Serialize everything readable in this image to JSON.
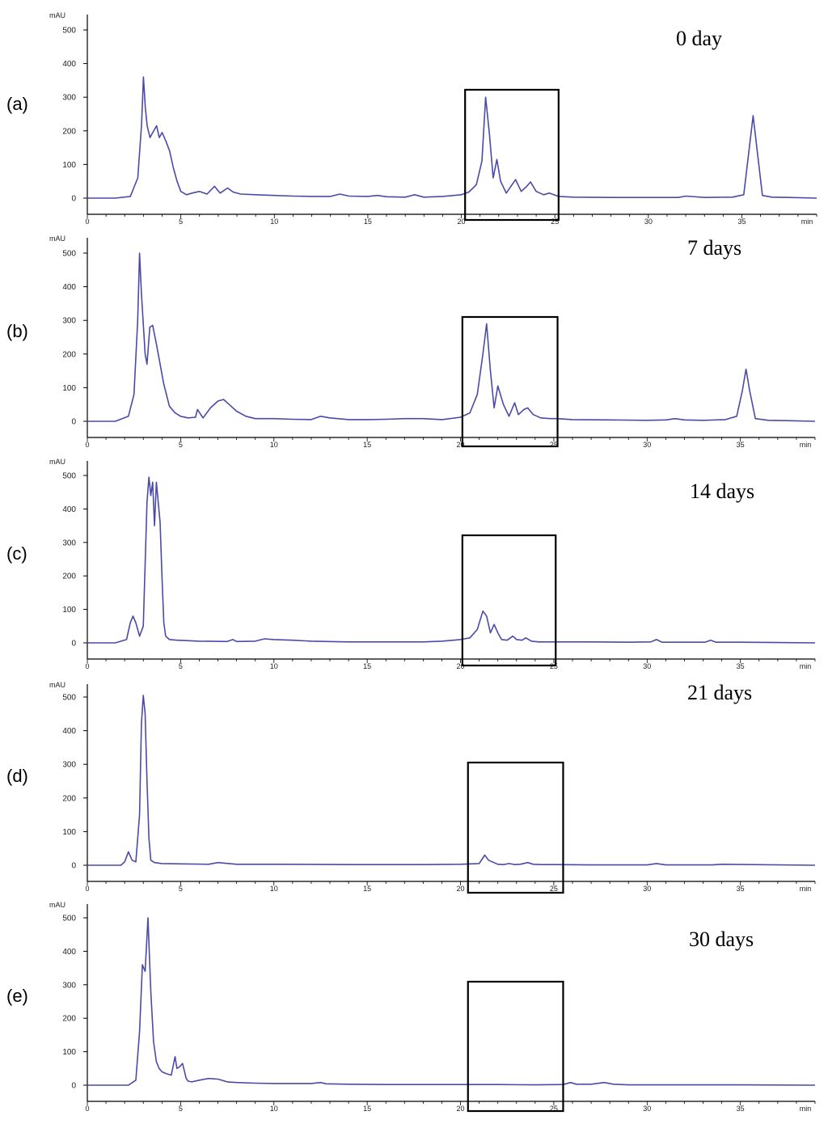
{
  "chart_data": [
    {
      "type": "line",
      "panel_label": "(a)",
      "annotation": "0 day",
      "ylabel": "mAU",
      "xlabel": "min",
      "xlim": [
        0,
        39
      ],
      "ylim": [
        0,
        550
      ],
      "x_ticks": [
        "0",
        "5",
        "10",
        "15",
        "20",
        "25",
        "30",
        "35",
        "min"
      ],
      "y_ticks": [
        "0",
        "100",
        "200",
        "300",
        "400",
        "500"
      ],
      "highlight_box_x": [
        20.2,
        25.2
      ],
      "series": [
        {
          "x": [
            0,
            1.5,
            2.3,
            2.7,
            2.9,
            3.0,
            3.1,
            3.2,
            3.35,
            3.5,
            3.7,
            3.85,
            4.0,
            4.2,
            4.4,
            4.6,
            4.8,
            5.0,
            5.3,
            5.6,
            6.0,
            6.4,
            6.8,
            7.1,
            7.5,
            7.8,
            8.2,
            9,
            10,
            11,
            12,
            13,
            13.5,
            14,
            15,
            15.5,
            16,
            17,
            17.5,
            18,
            19,
            20,
            20.4,
            20.8,
            21.1,
            21.3,
            21.5,
            21.7,
            21.9,
            22.1,
            22.4,
            22.9,
            23.2,
            23.5,
            23.7,
            24.0,
            24.4,
            24.7,
            25.2,
            26,
            28,
            30,
            31.6,
            32,
            33,
            34.5,
            35.1,
            35.4,
            35.6,
            35.8,
            36.1,
            36.6,
            37.5,
            39
          ],
          "y": [
            0,
            0,
            5,
            60,
            220,
            360,
            270,
            215,
            180,
            195,
            215,
            180,
            195,
            170,
            140,
            90,
            50,
            20,
            10,
            15,
            20,
            12,
            35,
            15,
            30,
            18,
            12,
            10,
            8,
            6,
            5,
            5,
            12,
            6,
            5,
            8,
            4,
            3,
            10,
            3,
            5,
            10,
            18,
            40,
            110,
            300,
            190,
            60,
            115,
            50,
            15,
            55,
            20,
            35,
            48,
            20,
            10,
            15,
            5,
            3,
            2,
            2,
            2,
            6,
            2,
            3,
            10,
            150,
            245,
            150,
            8,
            3,
            2,
            0
          ]
        }
      ]
    },
    {
      "type": "line",
      "panel_label": "(b)",
      "annotation": "7 days",
      "ylabel": "mAU",
      "xlabel": "min",
      "xlim": [
        0,
        39
      ],
      "ylim": [
        0,
        550
      ],
      "x_ticks": [
        "0",
        "5",
        "10",
        "15",
        "20",
        "25",
        "30",
        "35",
        "min"
      ],
      "y_ticks": [
        "0",
        "100",
        "200",
        "300",
        "400",
        "500"
      ],
      "highlight_box_x": [
        20.1,
        25.2
      ],
      "series": [
        {
          "x": [
            0,
            1.5,
            2.2,
            2.5,
            2.7,
            2.8,
            2.9,
            3.0,
            3.1,
            3.2,
            3.35,
            3.5,
            3.7,
            3.9,
            4.1,
            4.4,
            4.7,
            5.0,
            5.4,
            5.8,
            5.9,
            6.2,
            6.6,
            7.0,
            7.3,
            7.6,
            8.0,
            8.5,
            9,
            10,
            11,
            12,
            12.5,
            13,
            14,
            15,
            16,
            17,
            18,
            19,
            20,
            20.5,
            20.9,
            21.2,
            21.4,
            21.6,
            21.8,
            22.0,
            22.3,
            22.6,
            22.9,
            23.1,
            23.4,
            23.6,
            23.9,
            24.3,
            24.8,
            25.2,
            26,
            28,
            30,
            31,
            31.5,
            32,
            33,
            34.2,
            34.8,
            35.1,
            35.3,
            35.5,
            35.8,
            36.5,
            37.5,
            39
          ],
          "y": [
            0,
            0,
            15,
            80,
            300,
            500,
            380,
            290,
            200,
            170,
            280,
            285,
            230,
            170,
            110,
            45,
            25,
            15,
            10,
            12,
            35,
            10,
            40,
            60,
            65,
            50,
            30,
            15,
            8,
            8,
            6,
            5,
            15,
            10,
            5,
            5,
            6,
            8,
            8,
            5,
            12,
            25,
            80,
            200,
            290,
            150,
            40,
            105,
            50,
            15,
            55,
            20,
            35,
            40,
            20,
            10,
            8,
            8,
            5,
            4,
            3,
            4,
            8,
            4,
            3,
            5,
            15,
            90,
            155,
            90,
            8,
            3,
            2,
            0
          ]
        }
      ]
    },
    {
      "type": "line",
      "panel_label": "(c)",
      "annotation": "14 days",
      "ylabel": "mAU",
      "xlabel": "min",
      "xlim": [
        0,
        39
      ],
      "ylim": [
        0,
        550
      ],
      "x_ticks": [
        "0",
        "5",
        "10",
        "15",
        "20",
        "25",
        "30",
        "35",
        "min"
      ],
      "y_ticks": [
        "0",
        "100",
        "200",
        "300",
        "400",
        "500"
      ],
      "highlight_box_x": [
        20.1,
        25.1
      ],
      "series": [
        {
          "x": [
            0,
            1.5,
            2.1,
            2.3,
            2.45,
            2.6,
            2.8,
            3.0,
            3.2,
            3.3,
            3.4,
            3.5,
            3.6,
            3.7,
            3.8,
            3.9,
            4.0,
            4.1,
            4.2,
            4.4,
            4.8,
            6,
            7.5,
            7.8,
            8,
            9,
            9.5,
            10,
            11,
            12,
            14,
            16,
            18,
            19,
            20,
            20.5,
            20.9,
            21.2,
            21.4,
            21.6,
            21.8,
            22.0,
            22.2,
            22.5,
            22.8,
            23.0,
            23.3,
            23.5,
            23.8,
            24.2,
            25,
            27,
            29,
            30.2,
            30.5,
            30.8,
            32,
            33.1,
            33.4,
            33.7,
            35,
            37,
            39
          ],
          "y": [
            0,
            0,
            10,
            60,
            80,
            60,
            20,
            50,
            420,
            495,
            440,
            480,
            350,
            480,
            420,
            360,
            200,
            60,
            20,
            10,
            8,
            5,
            4,
            10,
            4,
            5,
            12,
            10,
            8,
            5,
            3,
            3,
            3,
            5,
            10,
            15,
            40,
            95,
            80,
            30,
            55,
            30,
            10,
            8,
            20,
            10,
            8,
            15,
            5,
            3,
            3,
            3,
            2,
            3,
            10,
            2,
            2,
            2,
            8,
            2,
            2,
            1,
            0
          ]
        }
      ]
    },
    {
      "type": "line",
      "panel_label": "(d)",
      "annotation": "21 days",
      "ylabel": "mAU",
      "xlabel": "min",
      "xlim": [
        0,
        39
      ],
      "ylim": [
        0,
        550
      ],
      "x_ticks": [
        "0",
        "5",
        "10",
        "15",
        "20",
        "25",
        "30",
        "35",
        "min"
      ],
      "y_ticks": [
        "0",
        "100",
        "200",
        "300",
        "400",
        "500"
      ],
      "highlight_box_x": [
        20.4,
        25.5
      ],
      "series": [
        {
          "x": [
            0,
            1.8,
            2.0,
            2.2,
            2.4,
            2.6,
            2.8,
            2.9,
            3.0,
            3.1,
            3.2,
            3.3,
            3.4,
            3.6,
            4.0,
            5,
            6.5,
            7,
            8,
            10,
            14,
            18,
            20,
            21,
            21.3,
            21.5,
            21.7,
            22.0,
            22.3,
            22.6,
            22.9,
            23.2,
            23.6,
            23.9,
            24.3,
            25,
            27,
            30,
            30.5,
            31,
            33.5,
            34,
            39
          ],
          "y": [
            0,
            0,
            10,
            40,
            15,
            10,
            150,
            420,
            505,
            450,
            250,
            80,
            15,
            8,
            5,
            4,
            3,
            8,
            3,
            3,
            2,
            2,
            3,
            5,
            30,
            15,
            10,
            3,
            2,
            5,
            2,
            3,
            8,
            3,
            2,
            2,
            1,
            1,
            5,
            1,
            1,
            3,
            0
          ]
        }
      ]
    },
    {
      "type": "line",
      "panel_label": "(e)",
      "annotation": "30 days",
      "ylabel": "mAU",
      "xlabel": "min",
      "xlim": [
        0,
        39
      ],
      "ylim": [
        0,
        550
      ],
      "x_ticks": [
        "0",
        "5",
        "10",
        "15",
        "20",
        "25",
        "30",
        "35",
        "min"
      ],
      "y_ticks": [
        "0",
        "100",
        "200",
        "300",
        "400",
        "500"
      ],
      "highlight_box_x": [
        20.4,
        25.5
      ],
      "series": [
        {
          "x": [
            0,
            2.2,
            2.6,
            2.8,
            2.95,
            3.1,
            3.25,
            3.4,
            3.55,
            3.7,
            3.85,
            4.0,
            4.2,
            4.5,
            4.7,
            4.8,
            4.95,
            5.1,
            5.3,
            5.4,
            5.6,
            6.0,
            6.5,
            7.0,
            7.5,
            8.0,
            9.0,
            10,
            11,
            12,
            12.5,
            12.8,
            14,
            16,
            18,
            20,
            22,
            24,
            25.5,
            25.9,
            26.2,
            27,
            27.7,
            28.2,
            29,
            31,
            35,
            39
          ],
          "y": [
            0,
            0,
            15,
            160,
            360,
            340,
            500,
            280,
            130,
            70,
            50,
            40,
            35,
            30,
            85,
            50,
            55,
            65,
            20,
            12,
            10,
            15,
            20,
            18,
            10,
            8,
            6,
            5,
            5,
            5,
            8,
            4,
            3,
            2,
            2,
            2,
            2,
            1,
            2,
            8,
            3,
            3,
            8,
            3,
            1,
            1,
            1,
            0
          ]
        }
      ]
    }
  ]
}
